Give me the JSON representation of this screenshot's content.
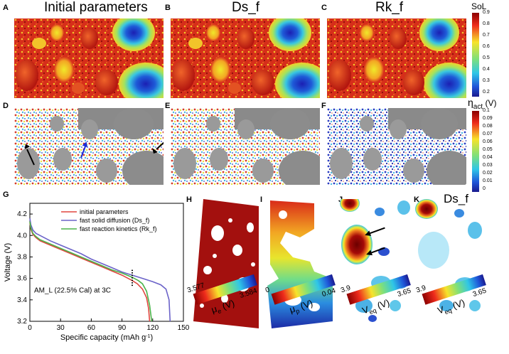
{
  "panels": {
    "A": {
      "label": "A",
      "title": "Initial parameters"
    },
    "B": {
      "label": "B",
      "title": "Ds_f"
    },
    "C": {
      "label": "C",
      "title": "Rk_f"
    },
    "D": {
      "label": "D"
    },
    "E": {
      "label": "E"
    },
    "F": {
      "label": "F"
    },
    "G": {
      "label": "G"
    },
    "H": {
      "label": "H"
    },
    "I": {
      "label": "I"
    },
    "J": {
      "label": "J"
    },
    "K": {
      "label": "K",
      "title": "Ds_f"
    }
  },
  "colorbars": {
    "sol": {
      "title": "SoL",
      "ticks": [
        "0.9",
        "0.8",
        "0.7",
        "0.6",
        "0.5",
        "0.4",
        "0.3",
        "0.2"
      ]
    },
    "eta": {
      "title_main": "η",
      "title_sub": "act",
      "title_unit": " (V)",
      "ticks": [
        "0.1",
        "0.09",
        "0.08",
        "0.07",
        "0.06",
        "0.05",
        "0.04",
        "0.03",
        "0.02",
        "0.01",
        "0"
      ]
    },
    "H": {
      "min": "3.577",
      "max": "3.584",
      "sym": "μ",
      "sub": "e",
      "unit": " (V)"
    },
    "I": {
      "min": "0",
      "max": "0.04",
      "sym": "μ",
      "sub": "p",
      "unit": " (V)"
    },
    "J": {
      "min": "3.9",
      "max": "3.65",
      "sym": "V",
      "sub": "eq",
      "unit": " (V)"
    },
    "K": {
      "min": "3.9",
      "max": "3.65",
      "sym": "V",
      "sub": "eq",
      "unit": " (V)"
    }
  },
  "chart_data": {
    "type": "line",
    "xlabel": "Specific capacity (mAh g",
    "xlabel_sup": "-1",
    "xlabel_end": ")",
    "ylabel": "Voltage (V)",
    "xlim": [
      0,
      150
    ],
    "ylim": [
      3.2,
      4.3
    ],
    "xticks": [
      0,
      30,
      60,
      90,
      120,
      150
    ],
    "yticks": [
      3.2,
      3.4,
      3.6,
      3.8,
      4.0,
      4.2
    ],
    "legend_position": "top-right",
    "annotation": "AM_L (22.5% Cal) at 3C",
    "series": [
      {
        "name": "initial parameters",
        "color": "#e0463f",
        "x": [
          0,
          1,
          3,
          6,
          10,
          20,
          30,
          40,
          50,
          60,
          70,
          80,
          90,
          100,
          105,
          110,
          114,
          116,
          117
        ],
        "y": [
          4.12,
          4.06,
          4.01,
          3.98,
          3.95,
          3.91,
          3.87,
          3.83,
          3.79,
          3.75,
          3.71,
          3.67,
          3.63,
          3.58,
          3.55,
          3.5,
          3.42,
          3.32,
          3.2
        ]
      },
      {
        "name": "fast solid diffusion (Ds_f)",
        "color": "#6b63c9",
        "x": [
          0,
          1,
          3,
          6,
          10,
          20,
          30,
          40,
          50,
          60,
          70,
          80,
          90,
          100,
          110,
          120,
          128,
          133,
          136,
          137
        ],
        "y": [
          4.16,
          4.1,
          4.05,
          4.02,
          4.0,
          3.95,
          3.91,
          3.87,
          3.83,
          3.78,
          3.74,
          3.7,
          3.66,
          3.63,
          3.6,
          3.57,
          3.54,
          3.5,
          3.4,
          3.2
        ]
      },
      {
        "name": "fast reaction kinetics (Rk_f)",
        "color": "#4cb34a",
        "x": [
          0,
          1,
          3,
          6,
          10,
          20,
          30,
          40,
          50,
          60,
          70,
          80,
          90,
          100,
          106,
          110,
          114,
          117,
          119
        ],
        "y": [
          4.13,
          4.07,
          4.02,
          3.99,
          3.96,
          3.92,
          3.88,
          3.84,
          3.8,
          3.76,
          3.72,
          3.68,
          3.65,
          3.61,
          3.58,
          3.55,
          3.48,
          3.35,
          3.2
        ]
      }
    ]
  }
}
